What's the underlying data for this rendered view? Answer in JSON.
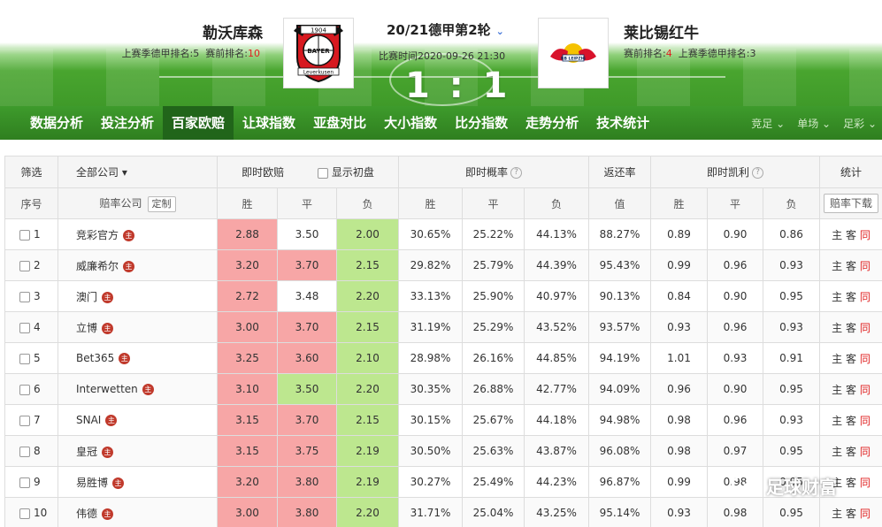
{
  "header": {
    "home_team": "勒沃库森",
    "home_last_season_label": "上赛季德甲排名:",
    "home_last_season_rank": "5",
    "home_pre_rank_label": "赛前排名:",
    "home_pre_rank": "10",
    "match_title": "20/21德甲第2轮",
    "match_time": "比赛时间2020-09-26 21:30",
    "score": "1 : 1",
    "away_team": "莱比锡红牛",
    "away_pre_rank_label": "赛前排名:",
    "away_pre_rank": "4",
    "away_last_season_label": "上赛季德甲排名:",
    "away_last_season_rank": "3",
    "home_logo_text": "BAYER",
    "home_logo_sub": "Leverkusen",
    "home_logo_year": "1904",
    "away_logo_text": "RB LEIPZIG"
  },
  "nav": {
    "items": [
      "数据分析",
      "投注分析",
      "百家欧赔",
      "让球指数",
      "亚盘对比",
      "大小指数",
      "比分指数",
      "走势分析",
      "技术统计"
    ],
    "active_index": 2,
    "right_items": [
      "竞足",
      "单场",
      "足彩"
    ]
  },
  "table": {
    "h1": {
      "filter": "筛选",
      "all_companies": "全部公司",
      "live_odds": "即时欧赔",
      "show_initial": "显示初盘",
      "live_prob": "即时概率",
      "return_rate": "返还率",
      "kelly": "即时凯利",
      "stats": "统计"
    },
    "h2": {
      "seq": "序号",
      "company": "赔率公司",
      "custom": "定制",
      "win": "胜",
      "draw": "平",
      "lose": "负",
      "pwin": "胜",
      "pdraw": "平",
      "plose": "负",
      "value": "值",
      "kwin": "胜",
      "kdraw": "平",
      "klose": "负",
      "download": "赔率下载"
    },
    "badge": "主",
    "action_zhu": "主",
    "action_ke": "客",
    "action_tong": "同",
    "rows": [
      {
        "no": "1",
        "company": "竞彩官方",
        "win": "2.88",
        "draw": "3.50",
        "lose": "2.00",
        "pw": "30.65%",
        "pd": "25.22%",
        "pl": "44.13%",
        "ret": "88.27%",
        "kw": "0.89",
        "kd": "0.90",
        "kl": "0.86",
        "wh": "red",
        "dh": "none",
        "lh": "green",
        "kwc": "red",
        "kdc": "black",
        "klc": "green"
      },
      {
        "no": "2",
        "company": "威廉希尔",
        "win": "3.20",
        "draw": "3.70",
        "lose": "2.15",
        "pw": "29.82%",
        "pd": "25.79%",
        "pl": "44.39%",
        "ret": "95.43%",
        "kw": "0.99",
        "kd": "0.96",
        "kl": "0.93",
        "wh": "red",
        "dh": "red",
        "lh": "green",
        "kwc": "red",
        "kdc": "red",
        "klc": "green"
      },
      {
        "no": "3",
        "company": "澳门",
        "win": "2.72",
        "draw": "3.48",
        "lose": "2.20",
        "pw": "33.13%",
        "pd": "25.90%",
        "pl": "40.97%",
        "ret": "90.13%",
        "kw": "0.84",
        "kd": "0.90",
        "kl": "0.95",
        "wh": "red",
        "dh": "none",
        "lh": "green",
        "kwc": "red",
        "kdc": "black",
        "klc": "green"
      },
      {
        "no": "4",
        "company": "立博",
        "win": "3.00",
        "draw": "3.70",
        "lose": "2.15",
        "pw": "31.19%",
        "pd": "25.29%",
        "pl": "43.52%",
        "ret": "93.57%",
        "kw": "0.93",
        "kd": "0.96",
        "kl": "0.93",
        "wh": "red",
        "dh": "red",
        "lh": "green",
        "kwc": "red",
        "kdc": "red",
        "klc": "green"
      },
      {
        "no": "5",
        "company": "Bet365",
        "win": "3.25",
        "draw": "3.60",
        "lose": "2.10",
        "pw": "28.98%",
        "pd": "26.16%",
        "pl": "44.85%",
        "ret": "94.19%",
        "kw": "1.01",
        "kd": "0.93",
        "kl": "0.91",
        "wh": "red",
        "dh": "red",
        "lh": "green",
        "kwc": "red",
        "kdc": "red",
        "klc": "green"
      },
      {
        "no": "6",
        "company": "Interwetten",
        "win": "3.10",
        "draw": "3.50",
        "lose": "2.20",
        "pw": "30.35%",
        "pd": "26.88%",
        "pl": "42.77%",
        "ret": "94.09%",
        "kw": "0.96",
        "kd": "0.90",
        "kl": "0.95",
        "wh": "red",
        "dh": "green",
        "lh": "green",
        "kwc": "red",
        "kdc": "green",
        "klc": "green"
      },
      {
        "no": "7",
        "company": "SNAI",
        "win": "3.15",
        "draw": "3.70",
        "lose": "2.15",
        "pw": "30.15%",
        "pd": "25.67%",
        "pl": "44.18%",
        "ret": "94.98%",
        "kw": "0.98",
        "kd": "0.96",
        "kl": "0.93",
        "wh": "red",
        "dh": "red",
        "lh": "green",
        "kwc": "red",
        "kdc": "red",
        "klc": "green"
      },
      {
        "no": "8",
        "company": "皇冠",
        "win": "3.15",
        "draw": "3.75",
        "lose": "2.19",
        "pw": "30.50%",
        "pd": "25.63%",
        "pl": "43.87%",
        "ret": "96.08%",
        "kw": "0.98",
        "kd": "0.97",
        "kl": "0.95",
        "wh": "red",
        "dh": "red",
        "lh": "green",
        "kwc": "red",
        "kdc": "red",
        "klc": "green"
      },
      {
        "no": "9",
        "company": "易胜博",
        "win": "3.20",
        "draw": "3.80",
        "lose": "2.19",
        "pw": "30.27%",
        "pd": "25.49%",
        "pl": "44.23%",
        "ret": "96.87%",
        "kw": "0.99",
        "kd": "0.98",
        "kl": "0.95",
        "wh": "red",
        "dh": "red",
        "lh": "green",
        "kwc": "red",
        "kdc": "red",
        "klc": "green"
      },
      {
        "no": "10",
        "company": "伟德",
        "win": "3.00",
        "draw": "3.80",
        "lose": "2.20",
        "pw": "31.71%",
        "pd": "25.04%",
        "pl": "43.25%",
        "ret": "95.14%",
        "kw": "0.93",
        "kd": "0.98",
        "kl": "0.95",
        "wh": "red",
        "dh": "red",
        "lh": "green",
        "kwc": "red",
        "kdc": "red",
        "klc": "green"
      }
    ]
  },
  "watermark": "足球财富"
}
